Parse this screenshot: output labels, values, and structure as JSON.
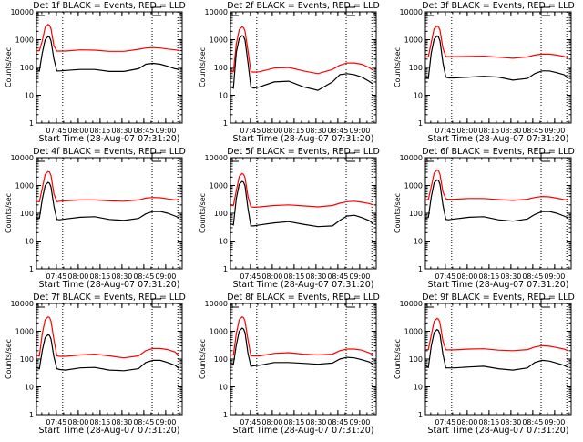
{
  "colors": {
    "events": "#000000",
    "lld": "#ff0000",
    "background": "#ffffff"
  },
  "chart_data": {
    "type": "line",
    "layout": "3x3 grid",
    "shared": {
      "xlabel": "Start Time (28-Aug-07 07:31:20)",
      "ylabel": "Counts/sec",
      "yscale": "log",
      "ylim": [
        1,
        10000
      ],
      "yticks": [
        "1",
        "10",
        "100",
        "1000",
        "10000"
      ],
      "yticks_values": [
        1,
        10,
        100,
        1000,
        10000
      ],
      "xlim_minutes_from_start": [
        0,
        100
      ],
      "xticks": [
        "07:45",
        "08:00",
        "08:15",
        "08:30",
        "08:45",
        "09:00"
      ],
      "xticks_minutes_from_start": [
        13.67,
        28.67,
        43.67,
        58.67,
        73.67,
        88.67
      ],
      "dotted_lines_minutes_from_start": [
        18,
        79.4,
        97
      ],
      "x_minutes_from_start": [
        0,
        2,
        4,
        6,
        8,
        9,
        10,
        12,
        14,
        16,
        20,
        30,
        40,
        50,
        60,
        70,
        75,
        80,
        85,
        90,
        95,
        98
      ]
    },
    "panels": [
      {
        "title": "Det 1f BLACK = Events, RED = LLD",
        "series": [
          {
            "name": "LLD",
            "color": "red",
            "values": [
              400,
              400,
              900,
              2800,
              3500,
              3300,
              2450,
              600,
              390,
              390,
              390,
              430,
              420,
              380,
              380,
              450,
              500,
              520,
              500,
              460,
              430,
              410
            ]
          },
          {
            "name": "Events",
            "color": "black",
            "values": [
              85,
              75,
              330,
              1000,
              1300,
              1230,
              900,
              200,
              75,
              75,
              78,
              85,
              85,
              72,
              72,
              90,
              130,
              140,
              130,
              110,
              90,
              85
            ]
          }
        ]
      },
      {
        "title": "Det 2f BLACK = Events, RED = LLD",
        "series": [
          {
            "name": "LLD",
            "color": "red",
            "values": [
              75,
              70,
              700,
              2300,
              2900,
              2700,
              2000,
              400,
              70,
              68,
              70,
              95,
              100,
              75,
              60,
              85,
              120,
              145,
              145,
              130,
              100,
              80
            ]
          },
          {
            "name": "Events",
            "color": "black",
            "values": [
              20,
              18,
              350,
              1100,
              1400,
              1300,
              950,
              150,
              20,
              18,
              20,
              30,
              32,
              20,
              15,
              30,
              55,
              60,
              55,
              45,
              32,
              25
            ]
          }
        ]
      },
      {
        "title": "Det 3f BLACK = Events, RED = LLD",
        "series": [
          {
            "name": "LLD",
            "color": "red",
            "values": [
              240,
              240,
              800,
              2500,
              3100,
              2900,
              2200,
              500,
              245,
              245,
              245,
              250,
              255,
              235,
              215,
              240,
              280,
              300,
              300,
              280,
              250,
              220
            ]
          },
          {
            "name": "Events",
            "color": "black",
            "values": [
              45,
              40,
              330,
              1050,
              1350,
              1250,
              900,
              150,
              45,
              42,
              42,
              45,
              48,
              45,
              35,
              40,
              60,
              75,
              75,
              65,
              55,
              42
            ]
          }
        ]
      },
      {
        "title": "Det 4f BLACK = Events, RED = LLD",
        "series": [
          {
            "name": "LLD",
            "color": "red",
            "values": [
              260,
              260,
              800,
              2500,
              3200,
              3000,
              2300,
              500,
              260,
              270,
              280,
              300,
              300,
              280,
              270,
              300,
              350,
              370,
              360,
              330,
              300,
              300
            ]
          },
          {
            "name": "Events",
            "color": "black",
            "values": [
              65,
              65,
              320,
              1000,
              1300,
              1200,
              880,
              180,
              60,
              58,
              62,
              72,
              75,
              60,
              55,
              65,
              95,
              115,
              115,
              100,
              80,
              68
            ]
          }
        ]
      },
      {
        "title": "Det 5f BLACK = Events, RED = LLD",
        "series": [
          {
            "name": "LLD",
            "color": "red",
            "values": [
              190,
              190,
              650,
              2100,
              2700,
              2500,
              1900,
              400,
              170,
              165,
              170,
              190,
              200,
              185,
              170,
              190,
              230,
              260,
              270,
              250,
              225,
              200
            ]
          },
          {
            "name": "Events",
            "color": "black",
            "values": [
              42,
              38,
              340,
              1100,
              1400,
              1300,
              950,
              150,
              35,
              35,
              38,
              45,
              50,
              40,
              33,
              35,
              55,
              80,
              85,
              70,
              55,
              42
            ]
          }
        ]
      },
      {
        "title": "Det 6f BLACK = Events, RED = LLD",
        "series": [
          {
            "name": "LLD",
            "color": "red",
            "values": [
              310,
              310,
              900,
              2800,
              3600,
              3400,
              2500,
              600,
              330,
              320,
              320,
              340,
              340,
              310,
              290,
              320,
              370,
              400,
              390,
              350,
              310,
              300
            ]
          },
          {
            "name": "Events",
            "color": "black",
            "values": [
              65,
              70,
              380,
              1250,
              1600,
              1500,
              1100,
              200,
              60,
              58,
              62,
              72,
              75,
              58,
              52,
              62,
              90,
              115,
              115,
              100,
              80,
              68
            ]
          }
        ]
      },
      {
        "title": "Det 7f BLACK = Events, RED = LLD",
        "series": [
          {
            "name": "LLD",
            "color": "red",
            "values": [
              130,
              130,
              820,
              2600,
              3300,
              3100,
              2300,
              500,
              130,
              125,
              125,
              140,
              150,
              130,
              110,
              130,
              200,
              240,
              240,
              220,
              180,
              130
            ]
          },
          {
            "name": "Events",
            "color": "black",
            "values": [
              50,
              45,
              200,
              600,
              750,
              700,
              520,
              120,
              45,
              42,
              40,
              48,
              50,
              40,
              38,
              45,
              75,
              90,
              90,
              75,
              60,
              45
            ]
          }
        ]
      },
      {
        "title": "Det 8f BLACK = Events, RED = LLD",
        "series": [
          {
            "name": "LLD",
            "color": "red",
            "values": [
              140,
              140,
              820,
              2600,
              3300,
              3100,
              2300,
              500,
              130,
              130,
              130,
              160,
              170,
              150,
              140,
              150,
              200,
              230,
              230,
              210,
              170,
              140
            ]
          },
          {
            "name": "Events",
            "color": "black",
            "values": [
              70,
              65,
              320,
              1000,
              1300,
              1200,
              880,
              160,
              55,
              57,
              60,
              75,
              75,
              70,
              65,
              72,
              100,
              115,
              110,
              95,
              80,
              65
            ]
          }
        ]
      },
      {
        "title": "Det 9f BLACK = Events, RED = LLD",
        "series": [
          {
            "name": "LLD",
            "color": "red",
            "values": [
              220,
              220,
              720,
              2300,
              2900,
              2700,
              2000,
              450,
              215,
              215,
              215,
              230,
              235,
              210,
              200,
              220,
              270,
              300,
              290,
              260,
              230,
              200
            ]
          },
          {
            "name": "Events",
            "color": "black",
            "values": [
              60,
              50,
              290,
              900,
              1150,
              1050,
              780,
              150,
              48,
              48,
              48,
              52,
              55,
              45,
              40,
              48,
              75,
              90,
              85,
              72,
              60,
              50
            ]
          }
        ]
      }
    ]
  }
}
